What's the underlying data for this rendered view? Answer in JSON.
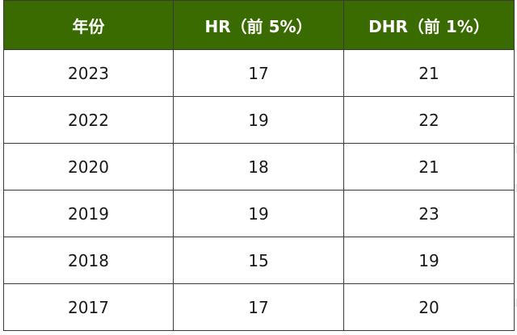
{
  "table": {
    "headers": [
      "年份",
      "HR（前 5%）",
      "DHR（前 1%）"
    ],
    "rows": [
      [
        "2023",
        "17",
        "21"
      ],
      [
        "2022",
        "19",
        "22"
      ],
      [
        "2020",
        "18",
        "21"
      ],
      [
        "2019",
        "19",
        "23"
      ],
      [
        "2018",
        "15",
        "19"
      ],
      [
        "2017",
        "17",
        "20"
      ]
    ]
  },
  "colors": {
    "header_bg": "#3a6b00",
    "header_text": "#ffffff",
    "border": "#3a3a3a"
  }
}
